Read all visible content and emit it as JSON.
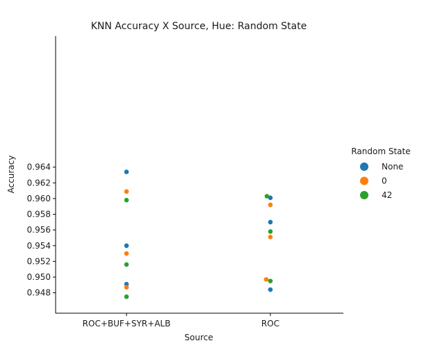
{
  "chart_data": {
    "type": "scatter",
    "title": "KNN Accuracy X Source, Hue: Random State",
    "xlabel": "Source",
    "ylabel": "Accuracy",
    "categories": [
      "ROC+BUF+SYR+ALB",
      "ROC"
    ],
    "ylim": [
      0.9467,
      0.9643
    ],
    "yticks": [
      "0.948",
      "0.950",
      "0.952",
      "0.954",
      "0.956",
      "0.958",
      "0.960",
      "0.962",
      "0.964"
    ],
    "grid": false,
    "legend": {
      "title": "Random State",
      "placement": "right"
    },
    "series": [
      {
        "name": "None",
        "color": "#1f77b4",
        "points": [
          {
            "category": "ROC+BUF+SYR+ALB",
            "y": 0.9634
          },
          {
            "category": "ROC+BUF+SYR+ALB",
            "y": 0.954
          },
          {
            "category": "ROC+BUF+SYR+ALB",
            "y": 0.9491
          },
          {
            "category": "ROC",
            "y": 0.9601
          },
          {
            "category": "ROC",
            "y": 0.957
          },
          {
            "category": "ROC",
            "y": 0.9484
          }
        ]
      },
      {
        "name": "0",
        "color": "#ff7f0e",
        "points": [
          {
            "category": "ROC+BUF+SYR+ALB",
            "y": 0.9609
          },
          {
            "category": "ROC+BUF+SYR+ALB",
            "y": 0.953
          },
          {
            "category": "ROC+BUF+SYR+ALB",
            "y": 0.9487
          },
          {
            "category": "ROC",
            "y": 0.9592
          },
          {
            "category": "ROC",
            "y": 0.9551
          },
          {
            "category": "ROC",
            "y": 0.9497
          }
        ]
      },
      {
        "name": "42",
        "color": "#2ca02c",
        "points": [
          {
            "category": "ROC+BUF+SYR+ALB",
            "y": 0.9598
          },
          {
            "category": "ROC+BUF+SYR+ALB",
            "y": 0.9516
          },
          {
            "category": "ROC+BUF+SYR+ALB",
            "y": 0.9475
          },
          {
            "category": "ROC",
            "y": 0.9603
          },
          {
            "category": "ROC",
            "y": 0.9558
          },
          {
            "category": "ROC",
            "y": 0.9495
          }
        ]
      }
    ]
  }
}
